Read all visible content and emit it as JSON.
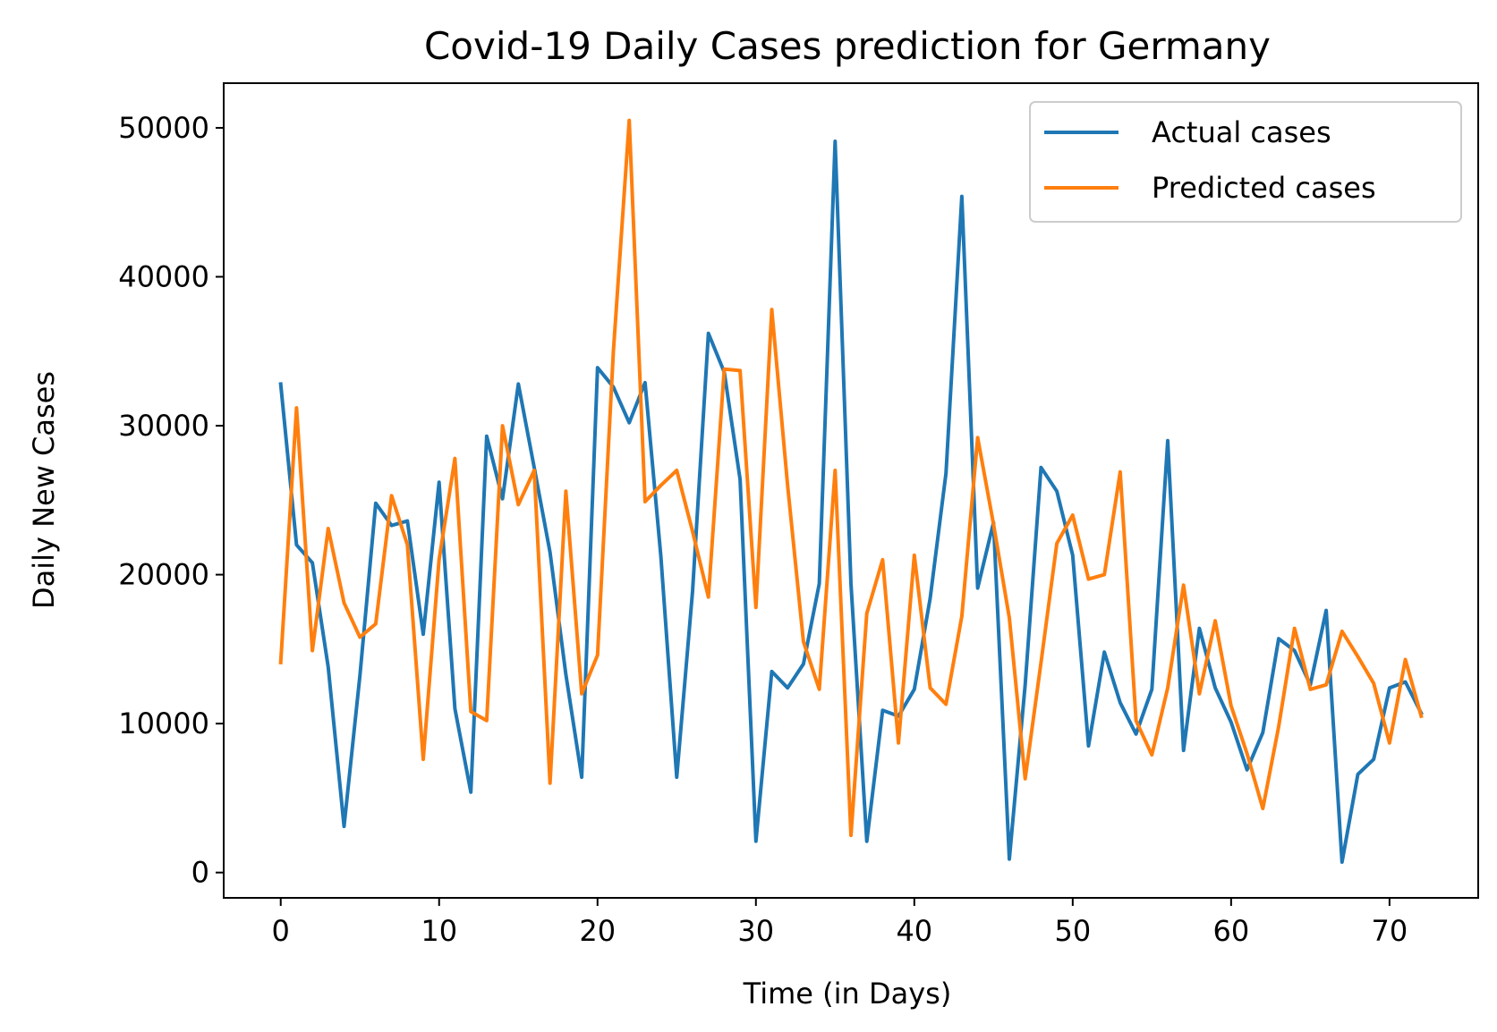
{
  "chart_data": {
    "type": "line",
    "title": "Covid-19 Daily Cases prediction for Germany",
    "xlabel": "Time (in Days)",
    "ylabel": "Daily New Cases",
    "xlim": [
      -3.6,
      75.6
    ],
    "ylim": [
      -1700,
      53000
    ],
    "xticks": [
      0,
      10,
      20,
      30,
      40,
      50,
      60,
      70
    ],
    "yticks": [
      0,
      10000,
      20000,
      30000,
      40000,
      50000
    ],
    "grid": false,
    "legend_position": "upper right",
    "series": [
      {
        "name": "Actual cases",
        "color": "#1f77b4",
        "x": [
          0,
          1,
          2,
          3,
          4,
          5,
          6,
          7,
          8,
          9,
          10,
          11,
          12,
          13,
          14,
          15,
          16,
          17,
          18,
          19,
          20,
          21,
          22,
          23,
          24,
          25,
          26,
          27,
          28,
          29,
          30,
          31,
          32,
          33,
          34,
          35,
          36,
          37,
          38,
          39,
          40,
          41,
          42,
          43,
          44,
          45,
          46,
          47,
          48,
          49,
          50,
          51,
          52,
          53,
          54,
          55,
          56,
          57,
          58,
          59,
          60,
          61,
          62,
          63,
          64,
          65,
          66,
          67,
          68,
          69,
          70,
          71,
          72
        ],
        "values": [
          32800,
          22000,
          20800,
          13800,
          3100,
          13200,
          24800,
          23300,
          23600,
          16000,
          26200,
          11000,
          5400,
          29300,
          25100,
          32800,
          27200,
          21500,
          13300,
          6400,
          33900,
          32600,
          30200,
          32900,
          21200,
          6400,
          18900,
          36200,
          33600,
          26400,
          2100,
          13500,
          12400,
          14000,
          19400,
          49100,
          19400,
          2100,
          10900,
          10500,
          12300,
          18400,
          26800,
          45400,
          19100,
          23500,
          900,
          12600,
          27200,
          25600,
          21300,
          8500,
          14800,
          11400,
          9300,
          12300,
          29000,
          8200,
          16400,
          12400,
          10100,
          6900,
          9400,
          15700,
          14900,
          12600,
          17600,
          700,
          6600,
          7600,
          12400,
          12800,
          10700
        ]
      },
      {
        "name": "Predicted cases",
        "color": "#ff7f0e",
        "x": [
          0,
          1,
          2,
          3,
          4,
          5,
          6,
          7,
          8,
          9,
          10,
          11,
          12,
          13,
          14,
          15,
          16,
          17,
          18,
          19,
          20,
          21,
          22,
          23,
          24,
          25,
          26,
          27,
          28,
          29,
          30,
          31,
          32,
          33,
          34,
          35,
          36,
          37,
          38,
          39,
          40,
          41,
          42,
          43,
          44,
          45,
          46,
          47,
          48,
          49,
          50,
          51,
          52,
          53,
          54,
          55,
          56,
          57,
          58,
          59,
          60,
          61,
          62,
          63,
          64,
          65,
          66,
          67,
          68,
          69,
          70,
          71,
          72
        ],
        "values": [
          14100,
          31200,
          14900,
          23100,
          18100,
          15800,
          16700,
          25300,
          22000,
          7600,
          21000,
          27800,
          10800,
          10200,
          30000,
          24700,
          27000,
          6000,
          25600,
          12000,
          14600,
          35000,
          50500,
          24900,
          26000,
          27000,
          22900,
          18500,
          33800,
          33700,
          17800,
          37800,
          26000,
          15500,
          12300,
          27000,
          2500,
          17400,
          21000,
          8700,
          21300,
          12400,
          11300,
          17200,
          29200,
          23400,
          17100,
          6300,
          14100,
          22100,
          24000,
          19700,
          20000,
          26900,
          10200,
          7900,
          12400,
          19300,
          12000,
          16900,
          11200,
          8000,
          4300,
          9800,
          16400,
          12300,
          12600,
          16200,
          14500,
          12700,
          8700,
          14300,
          10500
        ]
      }
    ]
  }
}
